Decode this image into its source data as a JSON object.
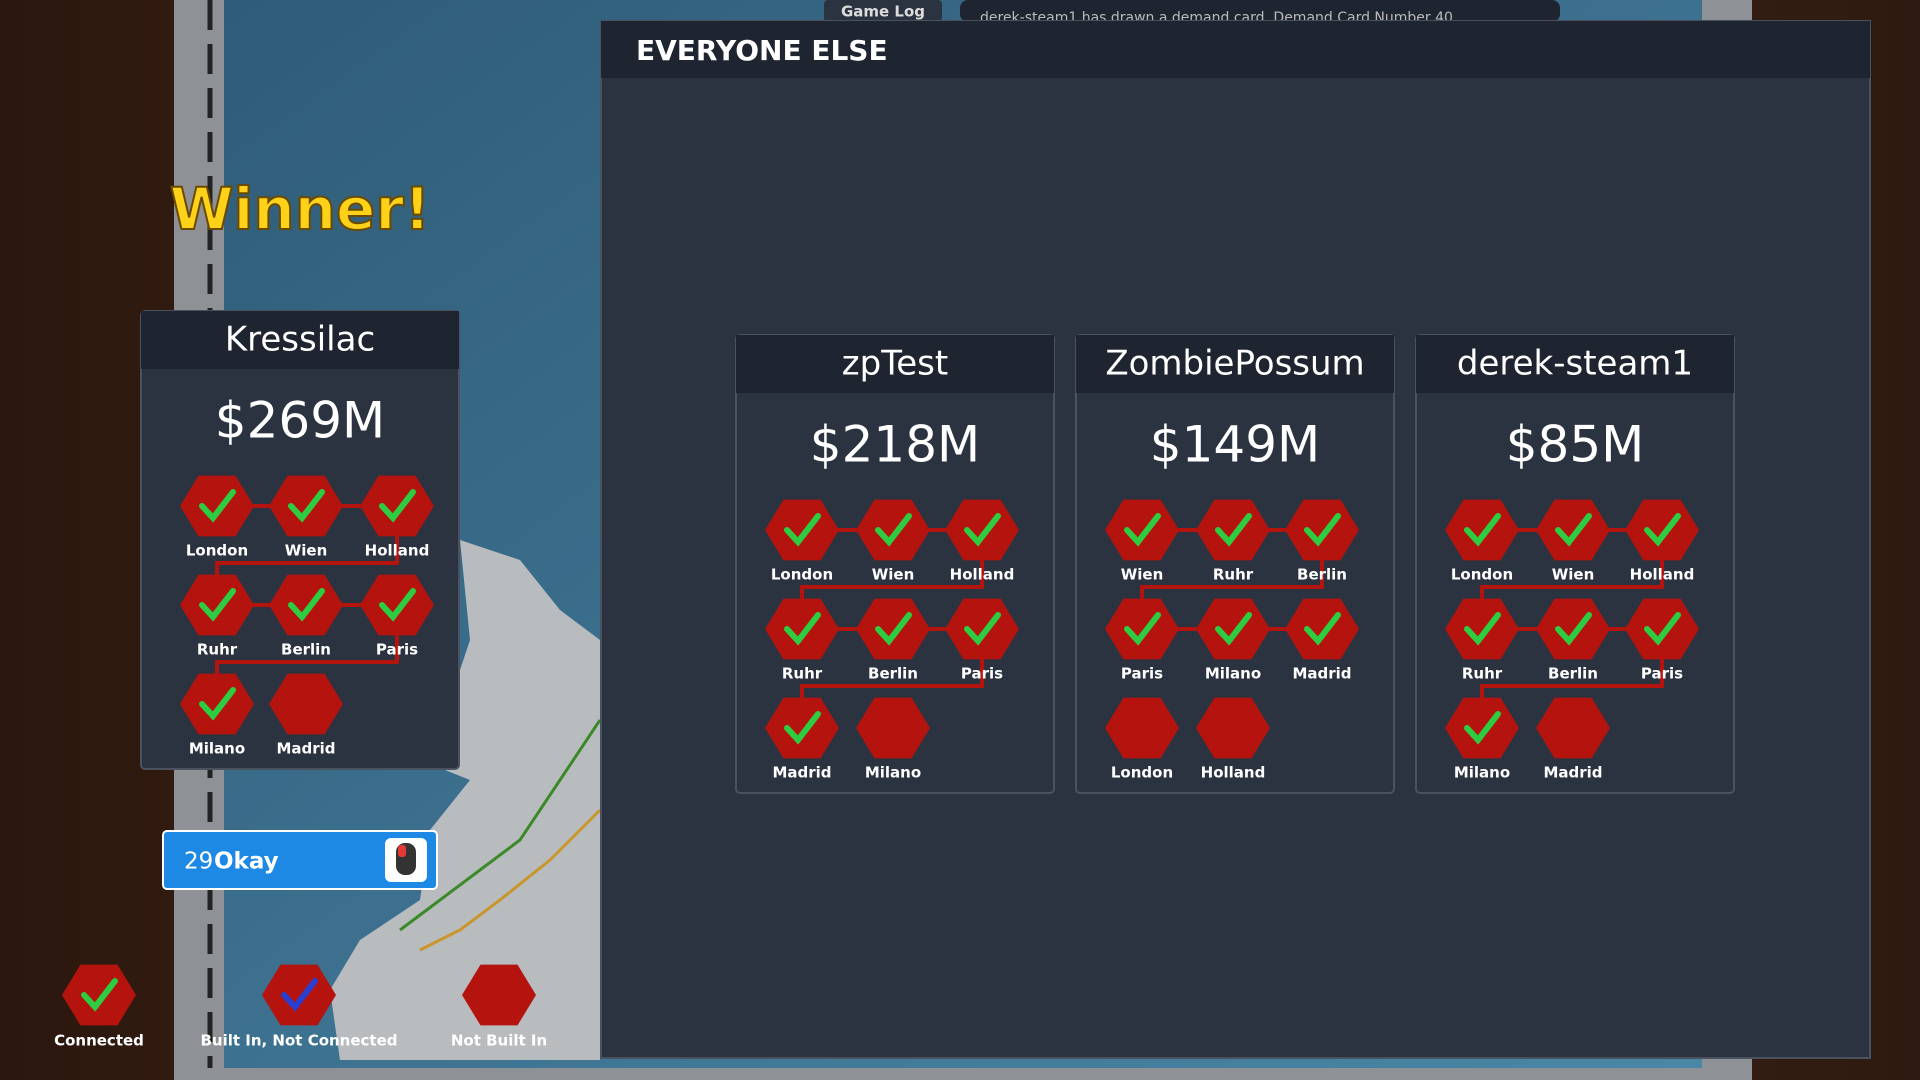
{
  "game_log": {
    "tab": "Game Log",
    "message": "derek-steam1 has drawn a demand card. Demand Card Number 40"
  },
  "winner": {
    "banner": "Winner!",
    "name": "Kressilac",
    "money": "$269M",
    "cities": [
      {
        "name": "London",
        "status": "connected"
      },
      {
        "name": "Wien",
        "status": "connected"
      },
      {
        "name": "Holland",
        "status": "connected"
      },
      {
        "name": "Ruhr",
        "status": "connected"
      },
      {
        "name": "Berlin",
        "status": "connected"
      },
      {
        "name": "Paris",
        "status": "connected"
      },
      {
        "name": "Milano",
        "status": "connected"
      },
      {
        "name": "Madrid",
        "status": "not_built"
      }
    ]
  },
  "everyone_else": {
    "title": "EVERYONE ELSE",
    "players": [
      {
        "name": "zpTest",
        "money": "$218M",
        "cities": [
          {
            "name": "London",
            "status": "connected"
          },
          {
            "name": "Wien",
            "status": "connected"
          },
          {
            "name": "Holland",
            "status": "connected"
          },
          {
            "name": "Ruhr",
            "status": "connected"
          },
          {
            "name": "Berlin",
            "status": "connected"
          },
          {
            "name": "Paris",
            "status": "connected"
          },
          {
            "name": "Madrid",
            "status": "connected"
          },
          {
            "name": "Milano",
            "status": "not_built"
          }
        ]
      },
      {
        "name": "ZombiePossum",
        "money": "$149M",
        "cities": [
          {
            "name": "Wien",
            "status": "connected"
          },
          {
            "name": "Ruhr",
            "status": "connected"
          },
          {
            "name": "Berlin",
            "status": "connected"
          },
          {
            "name": "Paris",
            "status": "connected"
          },
          {
            "name": "Milano",
            "status": "connected"
          },
          {
            "name": "Madrid",
            "status": "connected"
          },
          {
            "name": "London",
            "status": "not_built"
          },
          {
            "name": "Holland",
            "status": "not_built"
          }
        ]
      },
      {
        "name": "derek-steam1",
        "money": "$85M",
        "cities": [
          {
            "name": "London",
            "status": "connected"
          },
          {
            "name": "Wien",
            "status": "connected"
          },
          {
            "name": "Holland",
            "status": "connected"
          },
          {
            "name": "Ruhr",
            "status": "connected"
          },
          {
            "name": "Berlin",
            "status": "connected"
          },
          {
            "name": "Paris",
            "status": "connected"
          },
          {
            "name": "Milano",
            "status": "connected"
          },
          {
            "name": "Madrid",
            "status": "not_built"
          }
        ]
      }
    ]
  },
  "timer": {
    "count": "29",
    "label": "Okay"
  },
  "legend": [
    {
      "label": "Connected",
      "status": "connected"
    },
    {
      "label": "Built In, Not Connected",
      "status": "built"
    },
    {
      "label": "Not Built In",
      "status": "not_built"
    }
  ]
}
